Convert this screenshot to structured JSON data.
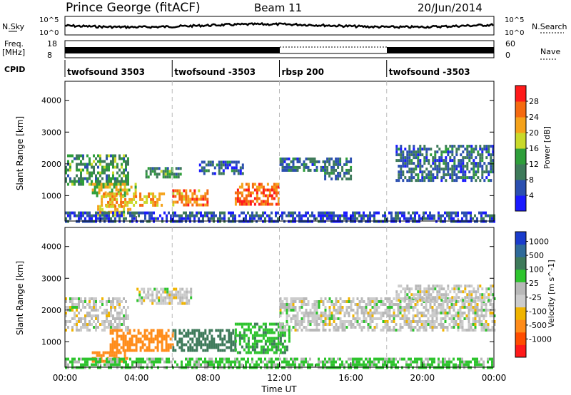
{
  "header": {
    "station": "Prince George (fitACF)",
    "beam": "Beam 11",
    "date": "20/Jun/2014"
  },
  "summary": {
    "nsky_label": "N.Sky",
    "nsearch_label": "N.Search",
    "freq_label": "Freq.",
    "freq_unit": "[MHz]",
    "nave_label": "Nave",
    "cpid_label": "CPID",
    "left_ticks_noise": [
      "10^5",
      "10^0"
    ],
    "right_ticks_noise": [
      "10^5",
      "10^0"
    ],
    "left_ticks_freq": [
      "18",
      "8"
    ],
    "right_ticks_nave": [
      "60",
      "0"
    ]
  },
  "cpid_segments": [
    {
      "label": "twofsound 3503",
      "start": 0,
      "end": 6
    },
    {
      "label": "twofsound -3503",
      "start": 6,
      "end": 12
    },
    {
      "label": "rbsp 200",
      "start": 12,
      "end": 18
    },
    {
      "label": "twofsound -3503",
      "start": 18,
      "end": 24
    }
  ],
  "colors": {
    "power_scale": [
      "#1a1aff",
      "#2b4fb0",
      "#3e7a5a",
      "#2e9e3a",
      "#c9d92a",
      "#f5a21a",
      "#f56a10",
      "#ff1a1a"
    ],
    "velocity_scale": [
      "#ff1a1a",
      "#ff4d00",
      "#ff8c1a",
      "#f0b400",
      "#cccccc",
      "#b8b8b8",
      "#2ec42e",
      "#3e7a5a",
      "#2f6a9a",
      "#1a3ccc"
    ]
  },
  "chart_data": [
    {
      "type": "heatmap",
      "quantity": "power",
      "ylabel": "Slant Range [km]",
      "yticks": [
        "1000",
        "2000",
        "3000",
        "4000"
      ],
      "ylim": [
        200,
        4600
      ],
      "xlim": [
        0,
        24
      ],
      "colorbar_label": "Power [dB]",
      "colorbar_ticks": [
        "4",
        "8",
        "12",
        "16",
        "20",
        "24",
        "28"
      ],
      "colorbar_range": [
        0,
        32
      ],
      "regions": [
        {
          "t0": 0.0,
          "t1": 3.5,
          "r0": 1400,
          "r1": 2300,
          "level": 12
        },
        {
          "t0": 1.5,
          "t1": 4.0,
          "r0": 1000,
          "r1": 1400,
          "level": 18
        },
        {
          "t0": 2.0,
          "t1": 5.5,
          "r0": 700,
          "r1": 1100,
          "level": 22
        },
        {
          "t0": 1.8,
          "t1": 3.6,
          "r0": 400,
          "r1": 700,
          "level": 20
        },
        {
          "t0": 4.5,
          "t1": 6.5,
          "r0": 1600,
          "r1": 1900,
          "level": 12
        },
        {
          "t0": 6.0,
          "t1": 8.0,
          "r0": 700,
          "r1": 1200,
          "level": 24
        },
        {
          "t0": 7.5,
          "t1": 10.0,
          "r0": 1700,
          "r1": 2100,
          "level": 8
        },
        {
          "t0": 9.5,
          "t1": 12.0,
          "r0": 700,
          "r1": 1400,
          "level": 26
        },
        {
          "t0": 12.0,
          "t1": 14.5,
          "r0": 1800,
          "r1": 2200,
          "level": 8
        },
        {
          "t0": 14.5,
          "t1": 16.0,
          "r0": 1500,
          "r1": 2200,
          "level": 8
        },
        {
          "t0": 18.5,
          "t1": 24.0,
          "r0": 1500,
          "r1": 2600,
          "level": 8
        },
        {
          "t0": 0.0,
          "t1": 24.0,
          "r0": 200,
          "r1": 500,
          "level": 6
        }
      ]
    },
    {
      "type": "heatmap",
      "quantity": "velocity",
      "ylabel": "Slant Range [km]",
      "yticks": [
        "1000",
        "2000",
        "3000",
        "4000"
      ],
      "ylim": [
        200,
        4600
      ],
      "xlim": [
        0,
        24
      ],
      "xlabel": "Time UT",
      "xticks": [
        "00:00",
        "04:00",
        "08:00",
        "12:00",
        "16:00",
        "20:00",
        "00:00"
      ],
      "colorbar_label": "Velocity [m s^-1]",
      "colorbar_ticks": [
        "1000",
        "500",
        "100",
        "25",
        "-25",
        "-100",
        "-500",
        "-1000"
      ],
      "regions": [
        {
          "t0": 0.0,
          "t1": 3.5,
          "r0": 1400,
          "r1": 2400,
          "level": 0
        },
        {
          "t0": 2.5,
          "t1": 6.0,
          "r0": 700,
          "r1": 1400,
          "level": -300
        },
        {
          "t0": 1.5,
          "t1": 3.5,
          "r0": 400,
          "r1": 700,
          "level": -200
        },
        {
          "t0": 6.0,
          "t1": 9.5,
          "r0": 700,
          "r1": 1400,
          "level": 300
        },
        {
          "t0": 9.5,
          "t1": 12.5,
          "r0": 700,
          "r1": 1600,
          "level": 80
        },
        {
          "t0": 12.0,
          "t1": 24.0,
          "r0": 1400,
          "r1": 2400,
          "level": 0
        },
        {
          "t0": 4.0,
          "t1": 7.0,
          "r0": 2200,
          "r1": 2700,
          "level": 0
        },
        {
          "t0": 18.5,
          "t1": 24.0,
          "r0": 2300,
          "r1": 2800,
          "level": 0
        },
        {
          "t0": 0.0,
          "t1": 24.0,
          "r0": 200,
          "r1": 500,
          "level": 40
        }
      ]
    }
  ]
}
